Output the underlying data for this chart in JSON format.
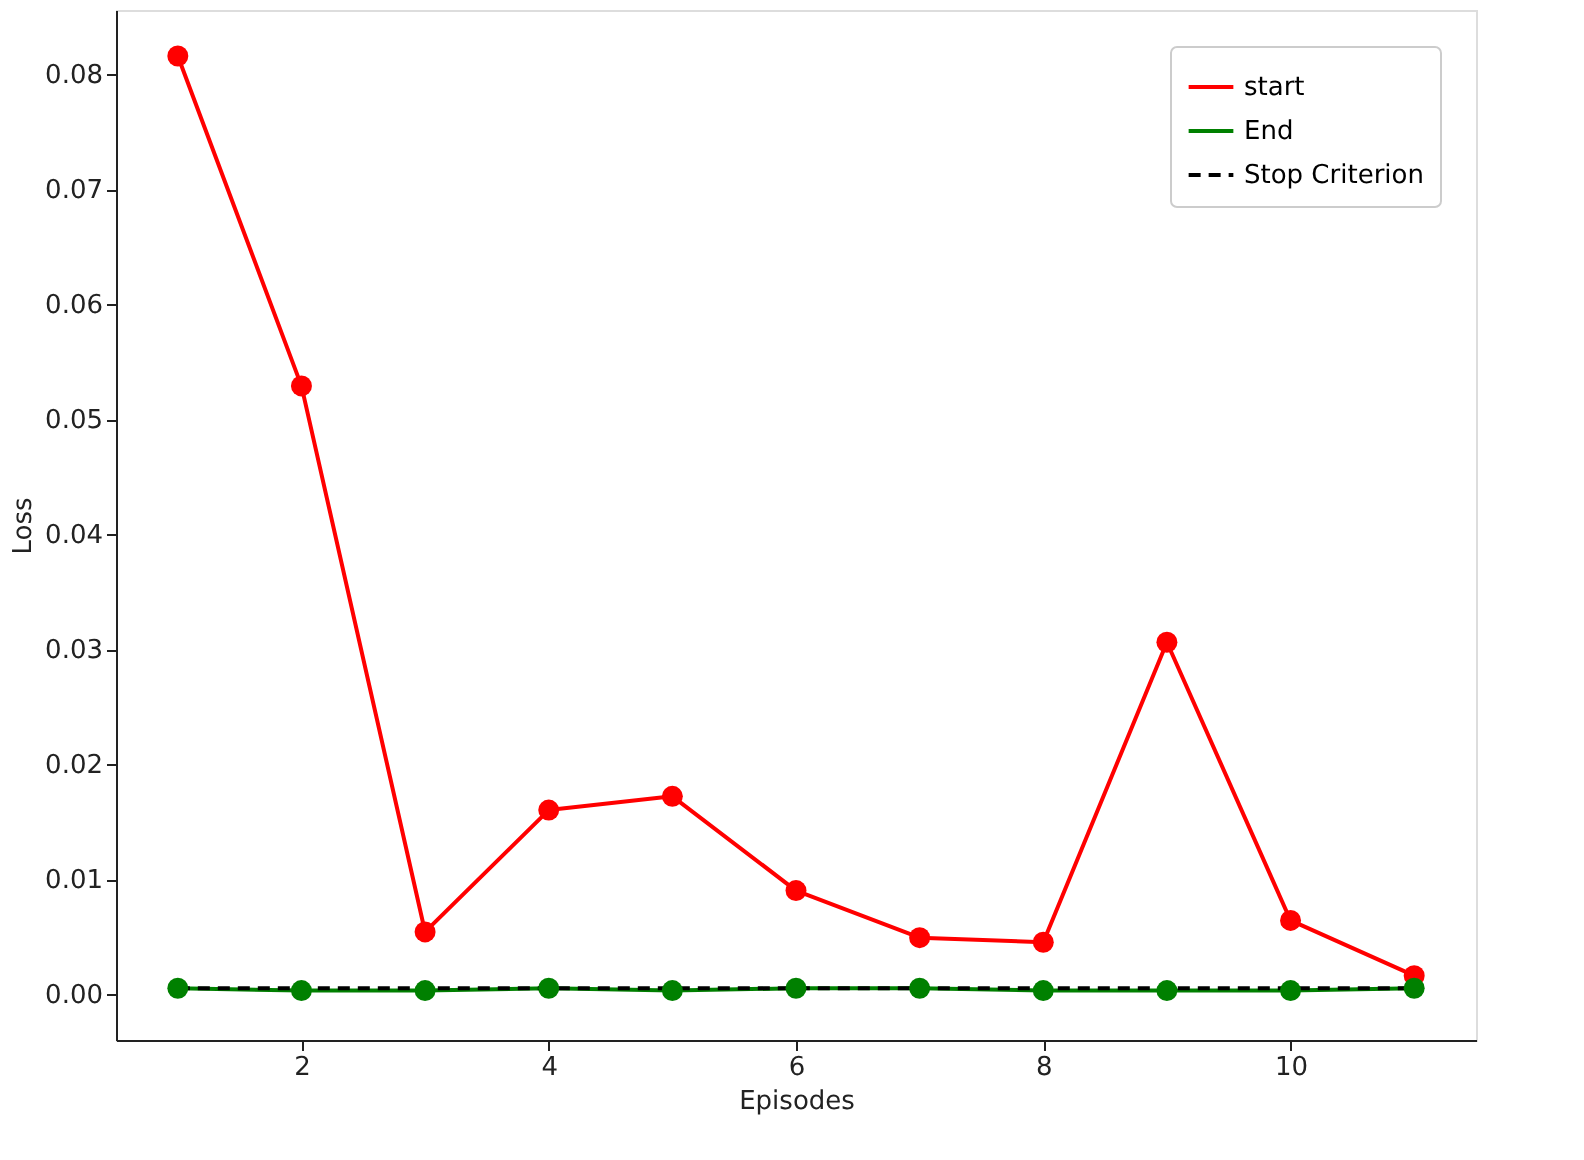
{
  "chart_data": {
    "type": "line",
    "xlabel": "Episodes",
    "ylabel": "Loss",
    "x": [
      1,
      2,
      3,
      4,
      5,
      6,
      7,
      8,
      9,
      10,
      11
    ],
    "series": [
      {
        "name": "start",
        "color": "#ff0000",
        "marker": "circle",
        "line_style": "solid",
        "values": [
          0.0816,
          0.0529,
          0.0054,
          0.016,
          0.0172,
          0.009,
          0.0049,
          0.0045,
          0.0306,
          0.0064,
          0.0016
        ]
      },
      {
        "name": "End",
        "color": "#008000",
        "marker": "circle",
        "line_style": "solid",
        "values": [
          0.0005,
          0.0003,
          0.0003,
          0.0005,
          0.0003,
          0.0005,
          0.0005,
          0.0003,
          0.0003,
          0.0003,
          0.0005
        ]
      },
      {
        "name": "Stop Criterion",
        "color": "#000000",
        "marker": "none",
        "line_style": "dashed",
        "x": [
          1,
          11
        ],
        "values": [
          0.0005,
          0.0005
        ]
      }
    ],
    "xlim": [
      0.5,
      11.5
    ],
    "xticks": [
      2,
      4,
      6,
      8,
      10
    ],
    "ylim": [
      -0.004,
      0.0856
    ],
    "yticks": [
      {
        "value": 0,
        "label": "0.00"
      },
      0.01,
      0.02,
      0.03,
      0.04,
      0.05,
      0.06,
      0.07,
      0.08
    ],
    "grid": false,
    "legend": "top right"
  }
}
